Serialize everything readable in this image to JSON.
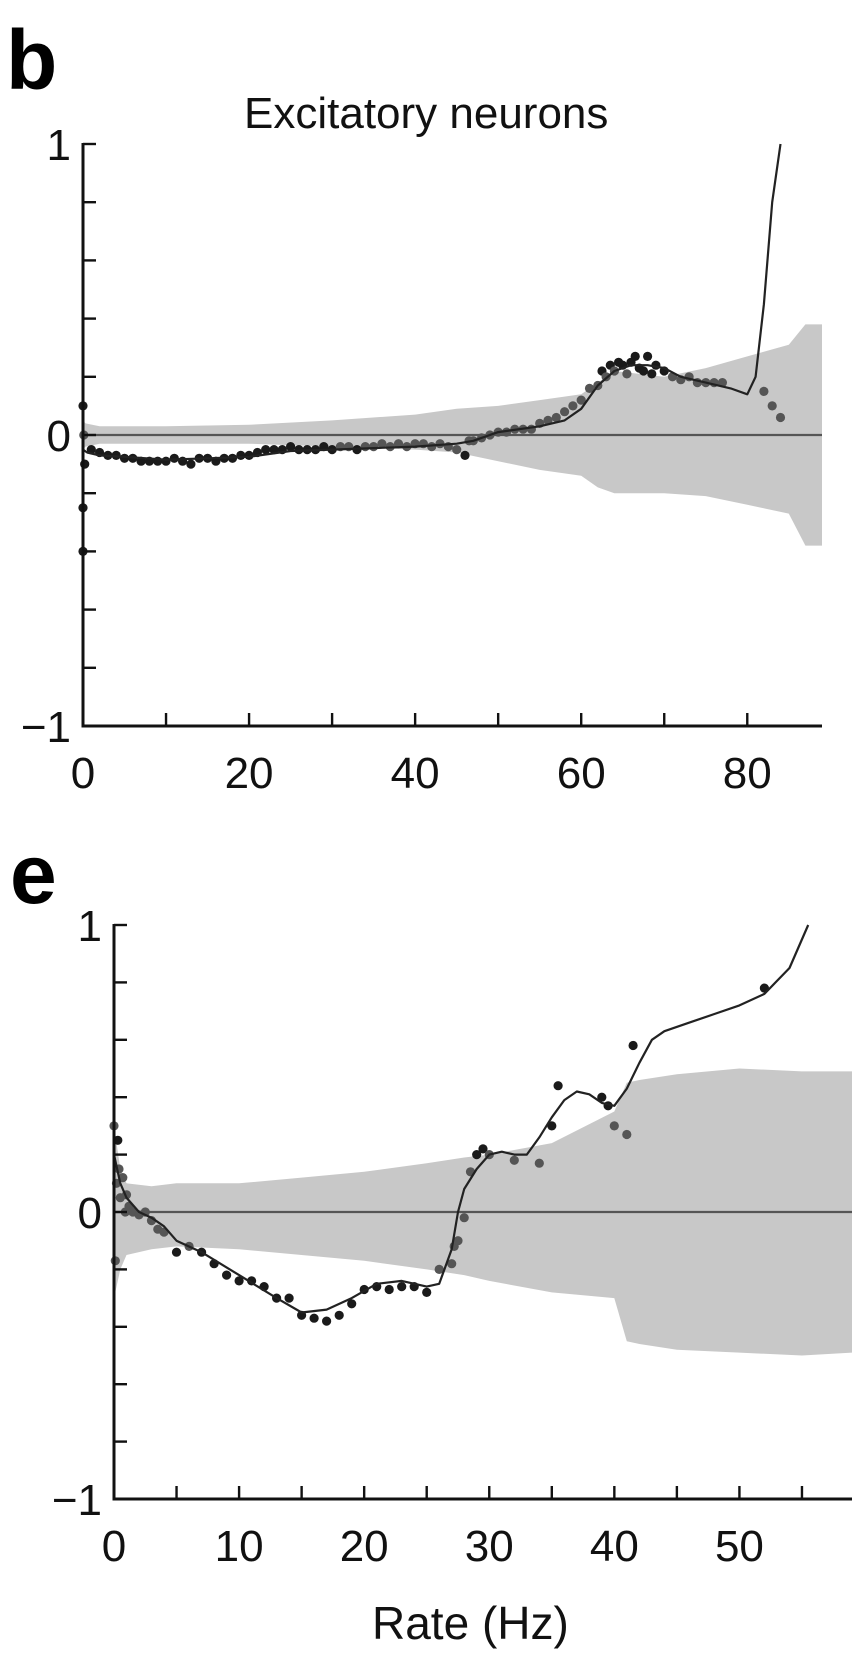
{
  "figure": {
    "panel_letters": [
      "b",
      "e"
    ]
  },
  "chart_data": [
    {
      "type": "scatter",
      "panel": "b",
      "title": "Excitatory neurons",
      "xlabel": "",
      "ylabel": "",
      "xlim": [
        0,
        89
      ],
      "ylim": [
        -1,
        1
      ],
      "x_ticks": [
        0,
        20,
        40,
        60,
        80
      ],
      "x_minor_ticks": [
        10,
        30,
        50,
        70
      ],
      "y_tick_labels": [
        "1",
        "0",
        "−1"
      ],
      "y_tick_values": [
        1,
        0,
        -1
      ],
      "y_minor_ticks": [
        0.8,
        0.6,
        0.4,
        0.2,
        -0.2,
        -0.4,
        -0.6,
        -0.8
      ],
      "grid": false,
      "colors": {
        "points": "#1a1a1a",
        "points_light": "#555555",
        "band": "#c8c8c8",
        "line": "#222222",
        "zero_line": "#555555"
      },
      "band": {
        "x": [
          0,
          0.3,
          2,
          5,
          10,
          20,
          30,
          40,
          45,
          50,
          55,
          60,
          62,
          64,
          70,
          75,
          80,
          85,
          87,
          89
        ],
        "upper": [
          0.05,
          0.04,
          0.03,
          0.03,
          0.03,
          0.035,
          0.05,
          0.07,
          0.09,
          0.1,
          0.12,
          0.14,
          0.18,
          0.22,
          0.2,
          0.23,
          0.27,
          0.31,
          0.38,
          0.38
        ],
        "lower": [
          -0.05,
          -0.04,
          -0.03,
          -0.03,
          -0.03,
          -0.03,
          -0.04,
          -0.05,
          -0.06,
          -0.09,
          -0.12,
          -0.14,
          -0.18,
          -0.2,
          -0.2,
          -0.21,
          -0.24,
          -0.27,
          -0.38,
          -0.38
        ]
      },
      "fit_line": {
        "x": [
          0,
          0.5,
          2,
          5,
          10,
          15,
          20,
          25,
          30,
          35,
          40,
          45,
          47,
          50,
          55,
          58,
          60,
          62,
          64,
          66,
          68,
          70,
          72,
          75,
          78,
          80,
          81,
          82,
          83,
          84
        ],
        "y": [
          -0.05,
          -0.06,
          -0.07,
          -0.075,
          -0.085,
          -0.08,
          -0.075,
          -0.055,
          -0.05,
          -0.045,
          -0.04,
          -0.03,
          -0.02,
          0.01,
          0.03,
          0.05,
          0.09,
          0.17,
          0.22,
          0.24,
          0.24,
          0.23,
          0.2,
          0.18,
          0.16,
          0.14,
          0.2,
          0.45,
          0.8,
          1.0
        ]
      },
      "points": {
        "x": [
          0,
          0,
          0,
          0.1,
          0.2,
          1,
          2,
          3,
          4,
          5,
          6,
          7,
          8,
          9,
          10,
          11,
          12,
          13,
          14,
          15,
          16,
          17,
          18,
          19,
          20,
          21,
          22,
          23,
          24,
          25,
          26,
          27,
          28,
          29,
          30,
          31,
          32,
          33,
          34,
          35,
          36,
          37,
          38,
          39,
          40,
          41,
          42,
          43,
          44,
          45,
          46,
          46.5,
          47,
          48,
          49,
          50,
          51,
          52,
          53,
          54,
          55,
          56,
          57,
          58,
          59,
          60,
          61,
          62,
          62.5,
          63,
          63.5,
          64,
          64.5,
          65,
          65.5,
          66,
          66.5,
          67,
          67.5,
          68,
          68.5,
          69,
          70,
          71,
          72,
          73,
          74,
          75,
          76,
          77,
          82,
          83,
          84
        ],
        "y": [
          0.1,
          -0.25,
          -0.4,
          0.0,
          -0.1,
          -0.05,
          -0.06,
          -0.07,
          -0.07,
          -0.08,
          -0.08,
          -0.09,
          -0.09,
          -0.09,
          -0.09,
          -0.08,
          -0.09,
          -0.1,
          -0.08,
          -0.08,
          -0.09,
          -0.08,
          -0.08,
          -0.07,
          -0.07,
          -0.06,
          -0.05,
          -0.05,
          -0.05,
          -0.04,
          -0.05,
          -0.05,
          -0.05,
          -0.04,
          -0.05,
          -0.04,
          -0.04,
          -0.05,
          -0.04,
          -0.04,
          -0.03,
          -0.04,
          -0.03,
          -0.04,
          -0.03,
          -0.03,
          -0.04,
          -0.03,
          -0.04,
          -0.05,
          -0.07,
          -0.02,
          -0.02,
          -0.01,
          0.0,
          0.01,
          0.01,
          0.02,
          0.02,
          0.02,
          0.04,
          0.05,
          0.06,
          0.08,
          0.1,
          0.12,
          0.16,
          0.17,
          0.22,
          0.2,
          0.24,
          0.22,
          0.25,
          0.24,
          0.21,
          0.25,
          0.27,
          0.23,
          0.22,
          0.27,
          0.21,
          0.24,
          0.22,
          0.2,
          0.19,
          0.2,
          0.18,
          0.18,
          0.18,
          0.18,
          0.15,
          0.1,
          0.06
        ]
      }
    },
    {
      "type": "scatter",
      "panel": "e",
      "title": "",
      "xlabel": "Rate (Hz)",
      "ylabel": "",
      "xlim": [
        0,
        59
      ],
      "ylim": [
        -1,
        1
      ],
      "x_ticks": [
        0,
        10,
        20,
        30,
        40,
        50
      ],
      "x_minor_ticks": [
        5,
        15,
        25,
        35,
        45,
        55
      ],
      "y_tick_labels": [
        "1",
        "0",
        "−1"
      ],
      "y_tick_values": [
        1,
        0,
        -1
      ],
      "y_minor_ticks": [
        0.8,
        0.6,
        0.4,
        0.2,
        -0.2,
        -0.4,
        -0.6,
        -0.8
      ],
      "grid": false,
      "colors": {
        "points": "#1a1a1a",
        "points_light": "#555555",
        "band": "#c8c8c8",
        "line": "#222222",
        "zero_line": "#555555"
      },
      "band": {
        "x": [
          0,
          0.5,
          1,
          3,
          5,
          10,
          15,
          20,
          25,
          28,
          30,
          35,
          40,
          41,
          42,
          45,
          50,
          55,
          59
        ],
        "upper": [
          0.3,
          0.15,
          0.1,
          0.09,
          0.1,
          0.1,
          0.12,
          0.14,
          0.17,
          0.19,
          0.2,
          0.24,
          0.35,
          0.45,
          0.46,
          0.48,
          0.5,
          0.49,
          0.49
        ],
        "lower": [
          -0.3,
          -0.2,
          -0.15,
          -0.13,
          -0.12,
          -0.13,
          -0.15,
          -0.17,
          -0.2,
          -0.22,
          -0.24,
          -0.28,
          -0.3,
          -0.45,
          -0.46,
          -0.48,
          -0.49,
          -0.5,
          -0.49
        ]
      },
      "fit_line": {
        "x": [
          0,
          0.5,
          1,
          2,
          3,
          4,
          5,
          7,
          10,
          13,
          15,
          17,
          19,
          21,
          23,
          25,
          26,
          27,
          27.5,
          28,
          29,
          30,
          31,
          32,
          33,
          34,
          35,
          36,
          37,
          38,
          39,
          40,
          41,
          42,
          43,
          44,
          46,
          48,
          50,
          52,
          54,
          55.5
        ],
        "y": [
          0.2,
          0.1,
          0.05,
          0.0,
          -0.02,
          -0.05,
          -0.1,
          -0.14,
          -0.22,
          -0.3,
          -0.35,
          -0.34,
          -0.3,
          -0.25,
          -0.24,
          -0.26,
          -0.25,
          -0.13,
          0.0,
          0.08,
          0.15,
          0.2,
          0.21,
          0.2,
          0.2,
          0.26,
          0.33,
          0.39,
          0.42,
          0.41,
          0.38,
          0.37,
          0.43,
          0.52,
          0.6,
          0.63,
          0.66,
          0.69,
          0.72,
          0.76,
          0.85,
          1.0
        ]
      },
      "points": {
        "x": [
          0,
          0.1,
          0.2,
          0.3,
          0.4,
          0.5,
          0.7,
          0.9,
          1,
          1.2,
          1.5,
          2,
          2.5,
          3,
          3.5,
          4,
          5,
          6,
          7,
          8,
          9,
          10,
          11,
          12,
          13,
          14,
          15,
          16,
          17,
          18,
          19,
          20,
          21,
          22,
          23,
          24,
          25,
          26,
          27,
          27.2,
          27.5,
          28,
          28.5,
          29,
          29.5,
          30,
          32,
          34,
          35,
          35.5,
          39,
          39.5,
          40,
          41,
          41.5,
          52
        ],
        "y": [
          0.3,
          -0.17,
          0.1,
          0.25,
          0.15,
          0.05,
          0.12,
          0.0,
          0.06,
          0.02,
          0.0,
          -0.01,
          0.0,
          -0.03,
          -0.06,
          -0.07,
          -0.14,
          -0.12,
          -0.14,
          -0.18,
          -0.22,
          -0.24,
          -0.24,
          -0.26,
          -0.3,
          -0.3,
          -0.36,
          -0.37,
          -0.38,
          -0.36,
          -0.32,
          -0.27,
          -0.26,
          -0.27,
          -0.26,
          -0.26,
          -0.28,
          -0.2,
          -0.18,
          -0.12,
          -0.1,
          -0.02,
          0.14,
          0.2,
          0.22,
          0.2,
          0.18,
          0.17,
          0.3,
          0.44,
          0.4,
          0.37,
          0.3,
          0.27,
          0.58,
          0.78
        ]
      }
    }
  ]
}
